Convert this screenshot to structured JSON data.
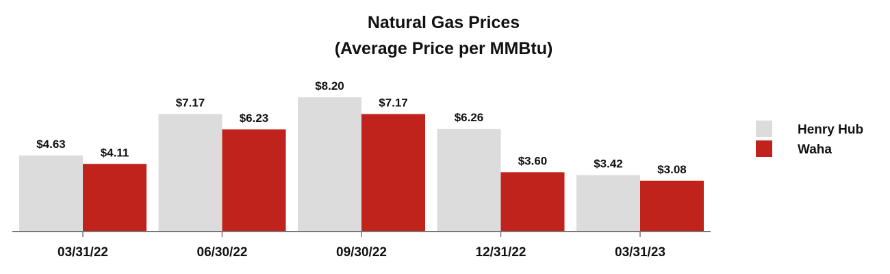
{
  "chart_data": {
    "type": "bar",
    "title": "Natural Gas Prices",
    "subtitle": "(Average Price per MMBtu)",
    "categories": [
      "03/31/22",
      "06/30/22",
      "09/30/22",
      "12/31/22",
      "03/31/23"
    ],
    "series": [
      {
        "name": "Henry Hub",
        "color": "#dcdcdc",
        "values": [
          4.63,
          7.17,
          8.2,
          6.26,
          3.42
        ],
        "labels": [
          "$4.63",
          "$7.17",
          "$8.20",
          "$6.26",
          "$3.42"
        ]
      },
      {
        "name": "Waha",
        "color": "#c0231b",
        "values": [
          4.11,
          6.23,
          7.17,
          3.6,
          3.08
        ],
        "labels": [
          "$4.11",
          "$6.23",
          "$7.17",
          "$3.60",
          "$3.08"
        ]
      }
    ],
    "xlabel": "",
    "ylabel": "",
    "ylim": [
      0,
      8.2
    ],
    "grid": false,
    "legend": "right"
  }
}
